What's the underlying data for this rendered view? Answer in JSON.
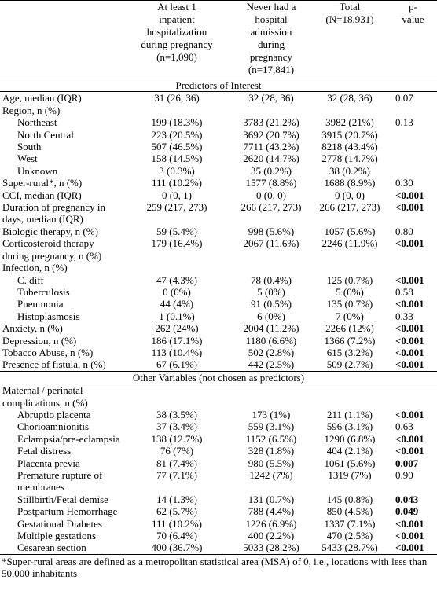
{
  "header": {
    "columns": [
      {
        "lines": []
      },
      {
        "lines": [
          "At least 1",
          "inpatient",
          "hospitalization",
          "during pregnancy",
          "(n=1,090)"
        ]
      },
      {
        "lines": [
          "Never had a",
          "hospital",
          "admission",
          "during",
          "pregnancy",
          "(n=17,841)"
        ]
      },
      {
        "lines": [
          "Total",
          "(N=18,931)"
        ]
      },
      {
        "lines": [
          "p-",
          "value"
        ]
      }
    ]
  },
  "rows": [
    {
      "section": "Predictors of Interest"
    },
    {
      "label": "Age, median (IQR)",
      "values": [
        "31 (26, 36)",
        "32 (28, 36)",
        "32 (28, 36)"
      ],
      "p": "0.07"
    },
    {
      "label": "Region, n (%)"
    },
    {
      "label": "Northeast",
      "indent": true,
      "values": [
        "199 (18.3%)",
        "3783 (21.2%)",
        "3982 (21%)"
      ],
      "p": "0.13"
    },
    {
      "label": "North Central",
      "indent": true,
      "values": [
        "223 (20.5%)",
        "3692 (20.7%)",
        "3915 (20.7%)"
      ]
    },
    {
      "label": "South",
      "indent": true,
      "values": [
        "507 (46.5%)",
        "7711 (43.2%)",
        "8218 (43.4%)"
      ]
    },
    {
      "label": "West",
      "indent": true,
      "values": [
        "158 (14.5%)",
        "2620 (14.7%)",
        "2778 (14.7%)"
      ]
    },
    {
      "label": "Unknown",
      "indent": true,
      "values": [
        "3 (0.3%)",
        "35 (0.2%)",
        "38 (0.2%)"
      ]
    },
    {
      "label": "Super-rural*, n (%)",
      "values": [
        "111 (10.2%)",
        "1577 (8.8%)",
        "1688 (8.9%)"
      ],
      "p": "0.30"
    },
    {
      "label": "CCI, median (IQR)",
      "values": [
        "0 (0, 1)",
        "0 (0, 0)",
        "0 (0, 0)"
      ],
      "p": "<0.001",
      "bold": true
    },
    {
      "label": "Duration of pregnancy in days, median (IQR)",
      "values": [
        "259 (217, 273)",
        "266 (217, 273)",
        "266 (217, 273)"
      ],
      "p": "<0.001",
      "bold": true
    },
    {
      "label": "Biologic therapy, n (%)",
      "values": [
        "59 (5.4%)",
        "998 (5.6%)",
        "1057 (5.6%)"
      ],
      "p": "0.80"
    },
    {
      "label": "Corticosteroid therapy during pregnancy, n (%)",
      "values": [
        "179 (16.4%)",
        "2067 (11.6%)",
        "2246 (11.9%)"
      ],
      "p": "<0.001",
      "bold": true
    },
    {
      "label": "Infection, n (%)"
    },
    {
      "label": "C. diff",
      "indent": true,
      "values": [
        "47 (4.3%)",
        "78 (0.4%)",
        "125 (0.7%)"
      ],
      "p": "<0.001",
      "bold": true
    },
    {
      "label": "Tuberculosis",
      "indent": true,
      "values": [
        "0 (0%)",
        "5 (0%)",
        "5 (0%)"
      ],
      "p": "0.58"
    },
    {
      "label": "Pneumonia",
      "indent": true,
      "values": [
        "44 (4%)",
        "91 (0.5%)",
        "135 (0.7%)"
      ],
      "p": "<0.001",
      "bold": true
    },
    {
      "label": "Histoplasmosis",
      "indent": true,
      "values": [
        "1 (0.1%)",
        "6 (0%)",
        "7 (0%)"
      ],
      "p": "0.33"
    },
    {
      "label": "Anxiety, n (%)",
      "values": [
        "262 (24%)",
        "2004 (11.2%)",
        "2266 (12%)"
      ],
      "p": "<0.001",
      "bold": true
    },
    {
      "label": "Depression, n (%)",
      "values": [
        "186 (17.1%)",
        "1180 (6.6%)",
        "1366 (7.2%)"
      ],
      "p": "<0.001",
      "bold": true
    },
    {
      "label": "Tobacco Abuse, n (%)",
      "values": [
        "113 (10.4%)",
        "502 (2.8%)",
        "615 (3.2%)"
      ],
      "p": "<0.001",
      "bold": true
    },
    {
      "label": "Presence of fistula, n (%)",
      "values": [
        "67 (6.1%)",
        "442 (2.5%)",
        "509 (2.7%)"
      ],
      "p": "<0.001",
      "bold": true
    },
    {
      "section": "Other Variables (not chosen as predictors)"
    },
    {
      "label": "Maternal / perinatal complications, n (%)"
    },
    {
      "label": "Abruptio placenta",
      "indent": true,
      "values": [
        "38 (3.5%)",
        "173 (1%)",
        "211 (1.1%)"
      ],
      "p": "<0.001",
      "bold": true
    },
    {
      "label": "Chorioamnionitis",
      "indent": true,
      "values": [
        "37 (3.4%)",
        "559 (3.1%)",
        "596 (3.1%)"
      ],
      "p": "0.63"
    },
    {
      "label": "Eclampsia/pre-eclampsia",
      "indent": true,
      "values": [
        "138 (12.7%)",
        "1152 (6.5%)",
        "1290 (6.8%)"
      ],
      "p": "<0.001",
      "bold": true
    },
    {
      "label": "Fetal distress",
      "indent": true,
      "values": [
        "76 (7%)",
        "328 (1.8%)",
        "404 (2.1%)"
      ],
      "p": "<0.001",
      "bold": true
    },
    {
      "label": "Placenta previa",
      "indent": true,
      "values": [
        "81 (7.4%)",
        "980 (5.5%)",
        "1061 (5.6%)"
      ],
      "p": "0.007",
      "bold": true
    },
    {
      "label": "Premature rupture of membranes",
      "indent": true,
      "values": [
        "77 (7.1%)",
        "1242 (7%)",
        "1319 (7%)"
      ],
      "p": "0.90"
    },
    {
      "label": "Stillbirth/Fetal demise",
      "indent": true,
      "values": [
        "14 (1.3%)",
        "131 (0.7%)",
        "145 (0.8%)"
      ],
      "p": "0.043",
      "bold": true
    },
    {
      "label": "Postpartum Hemorrhage",
      "indent": true,
      "values": [
        "62 (5.7%)",
        "788 (4.4%)",
        "850 (4.5%)"
      ],
      "p": "0.049",
      "bold": true
    },
    {
      "label": "Gestational Diabetes",
      "indent": true,
      "values": [
        "111 (10.2%)",
        "1226 (6.9%)",
        "1337 (7.1%)"
      ],
      "p": "<0.001",
      "bold": true
    },
    {
      "label": "Multiple gestations",
      "indent": true,
      "values": [
        "70 (6.4%)",
        "400 (2.2%)",
        "470 (2.5%)"
      ],
      "p": "<0.001",
      "bold": true
    },
    {
      "label": "Cesarean section",
      "indent": true,
      "values": [
        "400 (36.7%)",
        "5033 (28.2%)",
        "5433 (28.7%)"
      ],
      "p": "<0.001",
      "bold": true
    }
  ],
  "footnote": "*Super-rural areas are defined as a metropolitan statistical area (MSA) of 0, i.e., locations with less than 50,000 inhabitants"
}
